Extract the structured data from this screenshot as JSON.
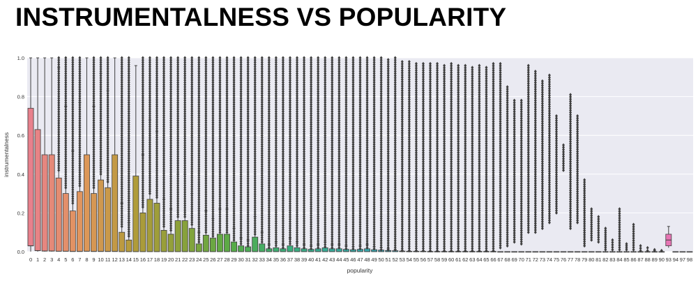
{
  "page": {
    "title": "INSTRUMENTALNESS VS POPULARITY"
  },
  "chart_data": {
    "type": "box",
    "title": "",
    "xlabel": "popularity",
    "ylabel": "instrumentalness",
    "ylim": [
      0,
      1.0
    ],
    "yticks": [
      "0.0",
      "0.2",
      "0.4",
      "0.6",
      "0.8",
      "1.0"
    ],
    "grid": true,
    "background": "#eaeaf2",
    "categories": [
      "0",
      "1",
      "2",
      "3",
      "4",
      "5",
      "6",
      "7",
      "8",
      "9",
      "10",
      "11",
      "12",
      "13",
      "14",
      "15",
      "16",
      "17",
      "18",
      "19",
      "20",
      "21",
      "22",
      "23",
      "24",
      "25",
      "26",
      "27",
      "28",
      "29",
      "30",
      "31",
      "32",
      "33",
      "34",
      "35",
      "36",
      "37",
      "38",
      "39",
      "40",
      "41",
      "42",
      "43",
      "44",
      "45",
      "46",
      "47",
      "48",
      "49",
      "50",
      "51",
      "52",
      "53",
      "54",
      "55",
      "56",
      "57",
      "58",
      "59",
      "60",
      "61",
      "62",
      "63",
      "64",
      "65",
      "66",
      "67",
      "68",
      "69",
      "70",
      "71",
      "72",
      "73",
      "74",
      "75",
      "76",
      "77",
      "78",
      "79",
      "80",
      "81",
      "82",
      "83",
      "84",
      "85",
      "86",
      "87",
      "88",
      "89",
      "90",
      "93",
      "94",
      "97",
      "98"
    ],
    "q1": [
      0.03,
      0.005,
      0.003,
      0.003,
      0.002,
      0.002,
      0.001,
      0.001,
      0.002,
      0.001,
      0.001,
      0.001,
      0.001,
      0,
      0,
      0,
      0,
      0,
      0,
      0,
      0,
      0,
      0,
      0,
      0,
      0,
      0,
      0,
      0,
      0,
      0,
      0,
      0,
      0,
      0,
      0,
      0,
      0,
      0,
      0,
      0,
      0,
      0,
      0,
      0,
      0,
      0,
      0,
      0,
      0,
      0,
      0,
      0,
      0,
      0,
      0,
      0,
      0,
      0,
      0,
      0,
      0,
      0,
      0,
      0,
      0,
      0,
      0,
      0,
      0,
      0,
      0,
      0,
      0,
      0,
      0,
      0,
      0,
      0,
      0,
      0,
      0,
      0,
      0,
      0,
      0,
      0,
      0,
      0,
      0,
      0,
      0.03,
      0,
      0,
      0
    ],
    "median": [
      0.03,
      0.005,
      0.003,
      0.003,
      0.002,
      0.002,
      0.001,
      0.001,
      0.002,
      0.001,
      0.001,
      0.001,
      0.001,
      0,
      0,
      0,
      0,
      0,
      0,
      0,
      0,
      0,
      0,
      0,
      0,
      0,
      0,
      0,
      0,
      0,
      0,
      0,
      0,
      0,
      0,
      0,
      0,
      0,
      0,
      0,
      0,
      0,
      0,
      0,
      0,
      0,
      0,
      0,
      0,
      0,
      0,
      0,
      0,
      0,
      0,
      0,
      0,
      0,
      0,
      0,
      0,
      0,
      0,
      0,
      0,
      0,
      0,
      0,
      0,
      0,
      0,
      0,
      0,
      0,
      0,
      0,
      0,
      0,
      0,
      0,
      0,
      0,
      0,
      0,
      0,
      0,
      0,
      0,
      0,
      0,
      0,
      0.06,
      0,
      0,
      0
    ],
    "q3": [
      0.74,
      0.63,
      0.5,
      0.5,
      0.38,
      0.3,
      0.21,
      0.31,
      0.5,
      0.3,
      0.37,
      0.33,
      0.5,
      0.1,
      0.06,
      0.39,
      0.2,
      0.27,
      0.25,
      0.11,
      0.09,
      0.16,
      0.16,
      0.12,
      0.04,
      0.085,
      0.07,
      0.09,
      0.09,
      0.05,
      0.03,
      0.025,
      0.075,
      0.04,
      0.015,
      0.02,
      0.015,
      0.03,
      0.02,
      0.015,
      0.012,
      0.015,
      0.02,
      0.015,
      0.015,
      0.012,
      0.01,
      0.012,
      0.015,
      0.01,
      0.008,
      0.006,
      0.005,
      0.003,
      0.002,
      0.002,
      0.002,
      0.001,
      0.001,
      0.001,
      0.001,
      0.001,
      0.001,
      0.001,
      0.001,
      0.001,
      0.001,
      0,
      0,
      0,
      0,
      0,
      0,
      0,
      0,
      0,
      0,
      0,
      0,
      0,
      0,
      0,
      0,
      0,
      0,
      0,
      0,
      0,
      0,
      0,
      0,
      0.09,
      0,
      0,
      0
    ],
    "whisker_high": [
      1.0,
      1.0,
      1.0,
      1.0,
      0.95,
      0.75,
      0.52,
      0.77,
      1.0,
      0.75,
      0.92,
      0.83,
      1.0,
      0.25,
      0.15,
      0.96,
      0.5,
      0.68,
      0.62,
      0.27,
      0.22,
      0.4,
      0.4,
      0.3,
      0.1,
      0.21,
      0.17,
      0.22,
      0.22,
      0.12,
      0.07,
      0.06,
      0.18,
      0.1,
      0.037,
      0.05,
      0.037,
      0.07,
      0.05,
      0.037,
      0.03,
      0.037,
      0.05,
      0.037,
      0.037,
      0.03,
      0.025,
      0.03,
      0.037,
      0.025,
      0.02,
      0.015,
      0.012,
      0.007,
      0.005,
      0.005,
      0.005,
      0.002,
      0.002,
      0.002,
      0.002,
      0.002,
      0.002,
      0.002,
      0.002,
      0.002,
      0.002,
      0,
      0,
      0,
      0,
      0,
      0,
      0,
      0,
      0,
      0,
      0,
      0,
      0,
      0,
      0,
      0,
      0,
      0,
      0,
      0,
      0,
      0,
      0,
      0,
      0.13,
      0,
      0,
      0
    ],
    "whisker_low": [
      0,
      0,
      0,
      0,
      0,
      0,
      0,
      0,
      0,
      0,
      0,
      0,
      0,
      0,
      0,
      0,
      0,
      0,
      0,
      0,
      0,
      0,
      0,
      0,
      0,
      0,
      0,
      0,
      0,
      0,
      0,
      0,
      0,
      0,
      0,
      0,
      0,
      0,
      0,
      0,
      0,
      0,
      0,
      0,
      0,
      0,
      0,
      0,
      0,
      0,
      0,
      0,
      0,
      0,
      0,
      0,
      0,
      0,
      0,
      0,
      0,
      0,
      0,
      0,
      0,
      0,
      0,
      0,
      0,
      0,
      0,
      0,
      0,
      0,
      0,
      0,
      0,
      0,
      0,
      0,
      0,
      0,
      0,
      0,
      0,
      0,
      0,
      0,
      0,
      0,
      0,
      0.02,
      0,
      0,
      0
    ],
    "outlier_max": [
      null,
      null,
      null,
      null,
      1.0,
      1.0,
      1.0,
      1.0,
      null,
      1.0,
      1.0,
      1.0,
      null,
      1.0,
      1.0,
      null,
      1.0,
      1.0,
      1.0,
      1.0,
      1.0,
      1.0,
      1.0,
      1.0,
      1.0,
      1.0,
      1.0,
      1.0,
      1.0,
      1.0,
      1.0,
      1.0,
      1.0,
      1.0,
      1.0,
      1.0,
      1.0,
      1.0,
      1.0,
      1.0,
      1.0,
      1.0,
      1.0,
      1.0,
      1.0,
      1.0,
      1.0,
      1.0,
      1.0,
      1.0,
      1.0,
      0.99,
      1.0,
      0.98,
      0.98,
      0.97,
      0.97,
      0.97,
      0.97,
      0.96,
      0.97,
      0.96,
      0.96,
      0.95,
      0.96,
      0.95,
      0.97,
      0.97,
      0.85,
      0.78,
      0.78,
      0.96,
      0.93,
      0.88,
      0.91,
      0.7,
      0.55,
      0.81,
      0.7,
      0.37,
      0.22,
      0.18,
      0.12,
      0.06,
      0.22,
      0.04,
      0.14,
      0.03,
      0.02,
      0.01,
      0.005,
      null,
      null,
      null,
      null
    ],
    "outlier_min": [
      null,
      null,
      null,
      null,
      0.42,
      0.33,
      0.25,
      0.34,
      null,
      0.33,
      0.4,
      0.36,
      null,
      0.13,
      0.08,
      null,
      0.23,
      0.3,
      0.28,
      0.13,
      0.11,
      0.18,
      0.18,
      0.14,
      0.05,
      0.1,
      0.08,
      0.1,
      0.1,
      0.06,
      0.04,
      0.03,
      0.09,
      0.05,
      0.02,
      0.03,
      0.02,
      0.04,
      0.03,
      0.02,
      0.015,
      0.02,
      0.025,
      0.02,
      0.02,
      0.015,
      0.015,
      0.015,
      0.02,
      0.015,
      0.01,
      0.01,
      0.01,
      0.005,
      0.005,
      0.005,
      0.005,
      0.005,
      0.005,
      0.005,
      0.005,
      0.005,
      0.005,
      0.005,
      0.005,
      0.005,
      0.005,
      0.02,
      0.03,
      0.05,
      0.04,
      0.1,
      0.1,
      0.12,
      0.15,
      0.2,
      0.42,
      0.12,
      0.15,
      0.03,
      0.06,
      0.05,
      0.01,
      0.01,
      0.01,
      0.01,
      0.01,
      0.005,
      0.005,
      0.005,
      0.005,
      null,
      null,
      null,
      null
    ],
    "palette_stops": [
      "#e8808c",
      "#e1965c",
      "#b39b3a",
      "#8aa23a",
      "#56ab48",
      "#3bae7a",
      "#38aa9b",
      "#3aa6b6",
      "#3d9fce",
      "#7a91e0",
      "#a786e5",
      "#cf76e0",
      "#e26dc4",
      "#e87aa8"
    ]
  }
}
